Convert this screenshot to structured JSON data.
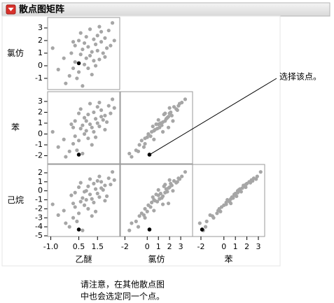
{
  "chart_data": {
    "type": "scatter_matrix",
    "title": "散点图矩阵",
    "point_color": "#a6a6a6",
    "variables": [
      {
        "name": "乙醚",
        "xlim": [
          -1.17,
          2.69
        ],
        "xticks": [
          {
            "value": -1,
            "label": "-1.0"
          },
          0.5,
          1.5
        ],
        "values": [
          -0.9,
          -0.6,
          -0.3,
          0.0,
          0.1,
          0.2,
          0.3,
          0.3,
          0.4,
          0.5,
          0.5,
          0.6,
          0.6,
          0.7,
          0.7,
          0.8,
          0.8,
          0.9,
          0.9,
          1.0,
          1.0,
          1.1,
          1.1,
          1.2,
          1.2,
          1.3,
          1.3,
          1.4,
          1.4,
          1.5,
          1.5,
          1.6,
          1.6,
          1.7,
          1.7,
          1.8,
          1.9,
          1.9,
          2.0,
          2.1,
          2.2,
          2.3,
          2.4,
          -0.2,
          0.2
        ]
      },
      {
        "name": "氯仿",
        "xlim": [
          -2.4,
          4.06
        ],
        "ylim": [
          -1.89,
          3.83
        ],
        "xticks": [
          -2,
          0,
          1,
          2,
          3
        ],
        "yticks": [
          3,
          2,
          1,
          0,
          -1
        ],
        "values": [
          1.4,
          -0.3,
          0.6,
          -0.8,
          1.0,
          -0.2,
          1.6,
          0.3,
          -1.0,
          2.0,
          -0.5,
          0.9,
          2.6,
          1.3,
          -1.6,
          0.1,
          1.8,
          2.3,
          0.6,
          -0.2,
          1.5,
          2.9,
          0.8,
          1.1,
          -0.7,
          2.1,
          0.4,
          1.7,
          0.0,
          2.4,
          1.2,
          3.1,
          0.5,
          1.9,
          2.7,
          1.0,
          2.2,
          0.7,
          1.4,
          2.8,
          1.6,
          3.4,
          2.0,
          -1.4,
          1.9
        ]
      },
      {
        "name": "苯",
        "xlim": [
          -2.73,
          3.55
        ],
        "ylim": [
          -2.74,
          3.9
        ],
        "xticks": [
          -2,
          0,
          1,
          2,
          3
        ],
        "yticks": [
          3,
          2,
          1,
          0,
          -1,
          -2
        ],
        "values": [
          0.2,
          -1.2,
          -0.5,
          -1.6,
          0.9,
          -0.9,
          1.2,
          -0.2,
          -1.5,
          1.9,
          -0.6,
          0.5,
          2.3,
          0.8,
          -1.8,
          0.0,
          1.5,
          1.2,
          0.3,
          -0.4,
          1.8,
          2.8,
          0.9,
          0.6,
          -1.0,
          2.0,
          0.2,
          1.4,
          -0.3,
          2.5,
          1.0,
          2.9,
          0.7,
          1.6,
          2.2,
          1.3,
          1.7,
          0.4,
          1.1,
          2.6,
          1.9,
          3.2,
          2.4,
          -2.1,
          0.6
        ]
      },
      {
        "name": "己烷",
        "ylim": [
          -5.08,
          2.93
        ],
        "yticks": [
          2,
          1,
          0,
          -1,
          -2,
          -3,
          -4,
          -5
        ],
        "values": [
          -1.5,
          -2.7,
          -2.2,
          -4.0,
          -0.5,
          -3.0,
          -0.2,
          -1.8,
          -3.4,
          0.4,
          -2.5,
          -1.2,
          0.9,
          -0.8,
          -4.4,
          -1.6,
          -0.1,
          0.0,
          -1.0,
          -2.0,
          0.5,
          1.3,
          -0.4,
          -0.9,
          -2.8,
          0.8,
          -1.3,
          0.2,
          -2.3,
          1.1,
          -0.3,
          1.6,
          -0.7,
          0.3,
          1.0,
          0.1,
          0.6,
          -1.1,
          -0.6,
          1.4,
          0.7,
          2.1,
          1.2,
          -3.6,
          -1.4
        ]
      }
    ],
    "selected": {
      "color": "#000000",
      "values": [
        0.5,
        0.2,
        -1.9,
        -4.3
      ]
    },
    "annotation": "选择该点。",
    "note": [
      "请注意，在其他散点图",
      "中也会选定同一个点。"
    ]
  }
}
